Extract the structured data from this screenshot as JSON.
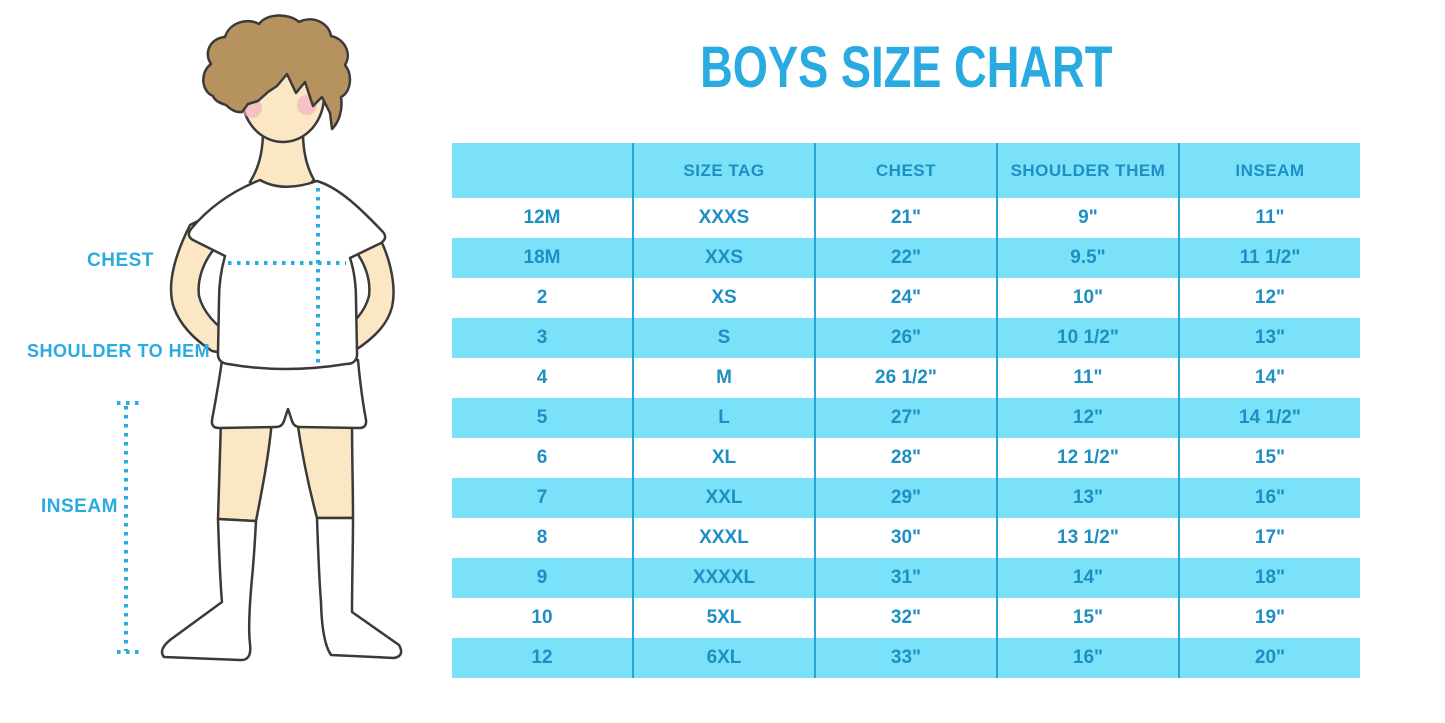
{
  "title": "BOYS SIZE CHART",
  "colors": {
    "accent_cyan": "#29ABE2",
    "table_fill_light_cyan": "#7BE1F9",
    "table_text_blue": "#1E8FC3",
    "table_divider_blue": "#2AA4D4",
    "skin": "#FBE7C3",
    "hair_brown": "#B6925F",
    "blush_pink": "#F3AFC0",
    "figure_outline": "#3A3A3A"
  },
  "figure_labels": {
    "chest": "CHEST",
    "shoulder_to_hem": "SHOULDER TO HEM",
    "inseam": "INSEAM"
  },
  "chart_data": {
    "type": "table",
    "title": "BOYS SIZE CHART",
    "columns": [
      "",
      "SIZE TAG",
      "CHEST",
      "SHOULDER THEM",
      "INSEAM"
    ],
    "rows": [
      [
        "12M",
        "XXXS",
        "21\"",
        "9\"",
        "11\""
      ],
      [
        "18M",
        "XXS",
        "22\"",
        "9.5\"",
        "11 1/2\""
      ],
      [
        "2",
        "XS",
        "24\"",
        "10\"",
        "12\""
      ],
      [
        "3",
        "S",
        "26\"",
        "10 1/2\"",
        "13\""
      ],
      [
        "4",
        "M",
        "26 1/2\"",
        "11\"",
        "14\""
      ],
      [
        "5",
        "L",
        "27\"",
        "12\"",
        "14 1/2\""
      ],
      [
        "6",
        "XL",
        "28\"",
        "12 1/2\"",
        "15\""
      ],
      [
        "7",
        "XXL",
        "29\"",
        "13\"",
        "16\""
      ],
      [
        "8",
        "XXXL",
        "30\"",
        "13 1/2\"",
        "17\""
      ],
      [
        "9",
        "XXXXL",
        "31\"",
        "14\"",
        "18\""
      ],
      [
        "10",
        "5XL",
        "32\"",
        "15\"",
        "19\""
      ],
      [
        "12",
        "6XL",
        "33\"",
        "16\"",
        "20\""
      ]
    ],
    "layout": {
      "row_striping": [
        "white",
        "light_cyan"
      ],
      "header_fill": "light_cyan",
      "column_dividers": true,
      "horizontal_gridlines": false
    }
  }
}
